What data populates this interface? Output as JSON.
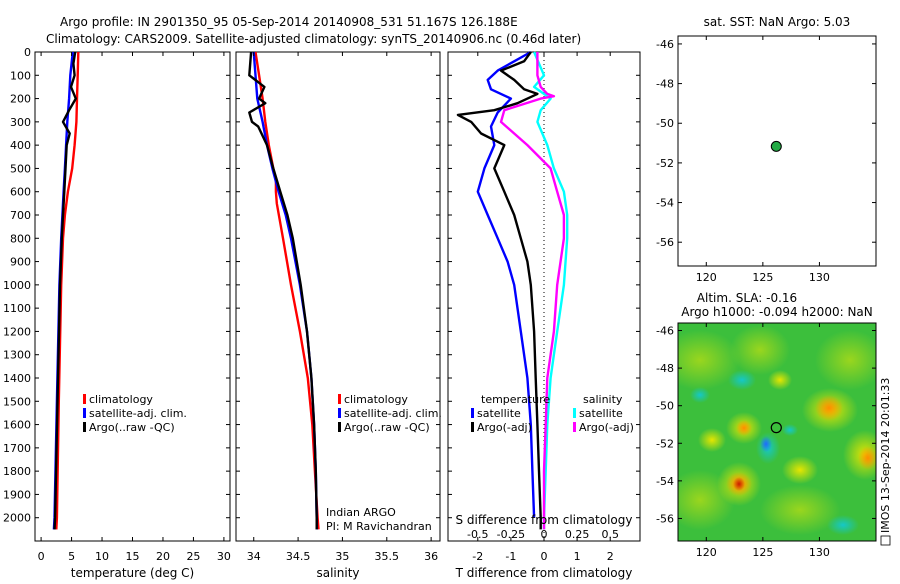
{
  "header": {
    "title_line1": "Argo profile: IN 2901350_95 05-Sep-2014 20140908_531 51.167S 126.188E",
    "title_line2": "Climatology: CARS2009. Satellite-adjusted climatology: synTS_20140906.nc (0.46d later)"
  },
  "colors": {
    "climatology": "#ff0000",
    "satellite": "#0000ff",
    "argo": "#000000",
    "sat_salinity": "#00ffff",
    "argo_salinity": "#ff00ff",
    "marker": "#22aa44"
  },
  "side_label": "IMOS 13-Sep-2014 20:01:33",
  "chart_data": [
    {
      "id": "temperature",
      "type": "line",
      "xlabel": "temperature (deg C)",
      "ylabel": "",
      "xlim": [
        -1,
        31
      ],
      "ylim": [
        2100,
        0
      ],
      "xticks": [
        0,
        5,
        10,
        15,
        20,
        25,
        30
      ],
      "yticks": [
        0,
        100,
        200,
        300,
        400,
        500,
        600,
        700,
        800,
        900,
        1000,
        1100,
        1200,
        1300,
        1400,
        1500,
        1600,
        1700,
        1800,
        1900,
        2000
      ],
      "legend": [
        "climatology",
        "satellite-adj. clim.",
        "Argo(..raw -QC)"
      ],
      "series": [
        {
          "name": "climatology",
          "color": "#ff0000",
          "y": [
            0,
            100,
            200,
            300,
            400,
            500,
            600,
            700,
            800,
            1000,
            1500,
            2000,
            2050
          ],
          "x": [
            6.1,
            6.0,
            5.9,
            5.8,
            5.5,
            5.1,
            4.4,
            3.9,
            3.6,
            3.3,
            2.9,
            2.6,
            2.5
          ]
        },
        {
          "name": "satellite-adj. clim.",
          "color": "#0000ff",
          "y": [
            0,
            100,
            200,
            300,
            400,
            500,
            600,
            700,
            800,
            1000,
            1500,
            2000,
            2050
          ],
          "x": [
            5.2,
            4.8,
            4.6,
            4.3,
            4.1,
            3.9,
            3.7,
            3.5,
            3.3,
            3.0,
            2.6,
            2.2,
            2.1
          ]
        },
        {
          "name": "Argo(..raw -QC)",
          "color": "#000000",
          "y": [
            0,
            50,
            100,
            150,
            200,
            250,
            300,
            350,
            400,
            500,
            600,
            700,
            800,
            1000,
            1500,
            2000,
            2050
          ],
          "x": [
            5.6,
            5.3,
            5.5,
            4.9,
            5.7,
            4.6,
            3.6,
            4.7,
            4.2,
            4.0,
            3.8,
            3.6,
            3.4,
            3.1,
            2.7,
            2.3,
            2.2
          ]
        }
      ]
    },
    {
      "id": "salinity",
      "type": "line",
      "xlabel": "salinity",
      "ylabel": "",
      "xlim": [
        33.8,
        36.1
      ],
      "ylim": [
        2100,
        0
      ],
      "xticks": [
        34,
        34.5,
        35,
        35.5,
        36
      ],
      "yticks": [
        0,
        100,
        200,
        300,
        400,
        500,
        600,
        700,
        800,
        900,
        1000,
        1100,
        1200,
        1300,
        1400,
        1500,
        1600,
        1700,
        1800,
        1900,
        2000
      ],
      "legend": [
        "climatology",
        "satellite-adj. clim.",
        "Argo(..raw -QC)"
      ],
      "annotation": [
        "Indian ARGO",
        "PI: M Ravichandran"
      ],
      "series": [
        {
          "name": "climatology",
          "color": "#ff0000",
          "y": [
            0,
            100,
            200,
            300,
            400,
            500,
            550,
            600,
            650,
            800,
            1000,
            1200,
            1400,
            1600,
            1800,
            2000,
            2050
          ],
          "x": [
            34.02,
            34.06,
            34.1,
            34.13,
            34.17,
            34.22,
            34.25,
            34.25,
            34.26,
            34.33,
            34.42,
            34.52,
            34.61,
            34.66,
            34.69,
            34.72,
            34.73
          ]
        },
        {
          "name": "satellite-adj. clim.",
          "color": "#0000ff",
          "y": [
            0,
            100,
            200,
            300,
            400,
            500,
            600,
            700,
            800,
            1000,
            1200,
            1400,
            1600,
            1800,
            2000,
            2050
          ],
          "x": [
            34.0,
            34.02,
            34.04,
            34.1,
            34.15,
            34.21,
            34.28,
            34.36,
            34.42,
            34.52,
            34.6,
            34.65,
            34.68,
            34.7,
            34.71,
            34.71
          ]
        },
        {
          "name": "Argo(..raw -QC)",
          "color": "#000000",
          "y": [
            0,
            100,
            150,
            200,
            220,
            260,
            300,
            320,
            400,
            500,
            600,
            700,
            800,
            1000,
            1200,
            1400,
            1600,
            1800,
            2000,
            2050
          ],
          "x": [
            33.97,
            33.95,
            34.12,
            34.06,
            34.13,
            33.95,
            33.98,
            34.05,
            34.15,
            34.22,
            34.3,
            34.38,
            34.44,
            34.53,
            34.6,
            34.65,
            34.68,
            34.7,
            34.71,
            34.71
          ]
        }
      ]
    },
    {
      "id": "differences",
      "type": "line",
      "xlabel": "T difference from climatology",
      "ylabel": "",
      "xlabel_top": "S difference from climatology",
      "xlim": [
        -2.9,
        2.9
      ],
      "ylim": [
        2100,
        0
      ],
      "xticks_T": [
        -2,
        -1,
        0,
        1,
        2
      ],
      "xticks_S": [
        "-0.5",
        "-0.25",
        "0",
        "0.25",
        "0.5"
      ],
      "xticks_S_pos": [
        -2,
        -1,
        0,
        1,
        2
      ],
      "yticks": [
        0,
        100,
        200,
        300,
        400,
        500,
        600,
        700,
        800,
        900,
        1000,
        1100,
        1200,
        1300,
        1400,
        1500,
        1600,
        1700,
        1800,
        1900,
        2000
      ],
      "legend_T_title": "temperature",
      "legend_S_title": "salinity",
      "legend_T": [
        "satellite",
        "Argo(-adj)"
      ],
      "legend_S": [
        "satellite",
        "Argo(-adj)"
      ],
      "series": [
        {
          "name": "temperature satellite",
          "color": "#0000ff",
          "y": [
            0,
            40,
            80,
            120,
            160,
            200,
            260,
            320,
            400,
            500,
            600,
            700,
            800,
            900,
            1000,
            1200,
            1400,
            1600,
            1800,
            2000
          ],
          "x": [
            -0.4,
            -0.9,
            -1.4,
            -1.7,
            -1.6,
            -1.0,
            -1.4,
            -1.6,
            -1.5,
            -1.8,
            -2.0,
            -1.7,
            -1.4,
            -1.1,
            -0.9,
            -0.7,
            -0.5,
            -0.4,
            -0.35,
            -0.3
          ]
        },
        {
          "name": "temperature Argo(-adj)",
          "color": "#000000",
          "y": [
            0,
            40,
            80,
            120,
            160,
            180,
            220,
            250,
            270,
            300,
            350,
            400,
            500,
            600,
            700,
            800,
            900,
            1000,
            1200,
            1400,
            1600,
            1800,
            2000,
            2050
          ],
          "x": [
            -0.4,
            -0.6,
            -1.3,
            -0.9,
            -0.6,
            -0.2,
            -0.8,
            -1.5,
            -2.6,
            -2.2,
            -1.9,
            -1.2,
            -1.5,
            -1.2,
            -0.9,
            -0.7,
            -0.5,
            -0.4,
            -0.3,
            -0.25,
            -0.2,
            -0.15,
            -0.1,
            -0.1
          ]
        },
        {
          "name": "salinity satellite",
          "color": "#00ffff",
          "y": [
            0,
            100,
            150,
            200,
            250,
            300,
            400,
            500,
            600,
            700,
            800,
            1000,
            1200,
            1400,
            1600,
            1800,
            2000,
            2050
          ],
          "x": [
            -0.3,
            0.0,
            -0.3,
            0.2,
            -0.1,
            -0.2,
            0.1,
            0.3,
            0.6,
            0.7,
            0.7,
            0.6,
            0.4,
            0.2,
            0.1,
            0.05,
            0.0,
            0.0
          ]
        },
        {
          "name": "salinity Argo(-adj)",
          "color": "#ff00ff",
          "y": [
            0,
            100,
            150,
            180,
            190,
            200,
            250,
            300,
            400,
            500,
            600,
            700,
            800,
            1000,
            1200,
            1400,
            1600,
            1800,
            2000,
            2050
          ],
          "x": [
            -0.2,
            -0.2,
            -0.1,
            0.1,
            0.3,
            -0.1,
            -1.2,
            -1.3,
            -0.5,
            0.2,
            0.4,
            0.6,
            0.6,
            0.4,
            0.3,
            0.1,
            0.05,
            0.0,
            0.0,
            0.0
          ]
        }
      ]
    },
    {
      "id": "location_sst",
      "type": "scatter",
      "title": "sat. SST: NaN Argo: 5.03",
      "xlim": [
        117.5,
        135
      ],
      "ylim": [
        -57.2,
        -45.6
      ],
      "xticks": [
        120,
        125,
        130
      ],
      "yticks": [
        -46,
        -48,
        -50,
        -52,
        -54,
        -56
      ],
      "points": [
        {
          "x": 126.188,
          "y": -51.167
        }
      ]
    },
    {
      "id": "location_sla",
      "type": "heatmap",
      "title_line1": "Altim. SLA: -0.16",
      "title_line2": "Argo h1000: -0.094 h2000: NaN",
      "xlim": [
        117.5,
        135
      ],
      "ylim": [
        -57.2,
        -45.6
      ],
      "xticks": [
        120,
        125,
        130
      ],
      "yticks": [
        -46,
        -48,
        -50,
        -52,
        -54,
        -56
      ],
      "points": [
        {
          "x": 126.188,
          "y": -51.167
        }
      ]
    }
  ]
}
